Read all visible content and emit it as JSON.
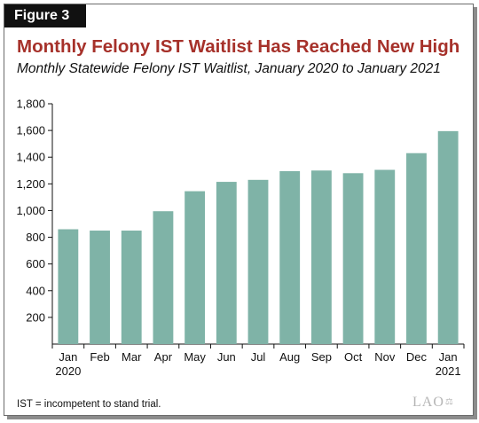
{
  "figure_label": "Figure 3",
  "title": "Monthly Felony IST Waitlist Has Reached New High",
  "subtitle": "Monthly Statewide Felony IST Waitlist, January 2020 to January 2021",
  "footnote": "IST = incompetent to stand trial.",
  "logo_text": "LAO",
  "colors": {
    "bar": "#7fb3a7",
    "title": "#a6312a",
    "axis": "#111111"
  },
  "chart_data": {
    "type": "bar",
    "categories": [
      "Jan 2020",
      "Feb",
      "Mar",
      "Apr",
      "May",
      "Jun",
      "Jul",
      "Aug",
      "Sep",
      "Oct",
      "Nov",
      "Dec",
      "Jan 2021"
    ],
    "values": [
      860,
      850,
      850,
      995,
      1145,
      1215,
      1230,
      1295,
      1300,
      1280,
      1305,
      1430,
      1595
    ],
    "ylim": [
      0,
      1800
    ],
    "yticks": [
      "200",
      "400",
      "600",
      "800",
      "1,000",
      "1,200",
      "1,400",
      "1,600",
      "1,800"
    ],
    "ytick_values": [
      200,
      400,
      600,
      800,
      1000,
      1200,
      1400,
      1600,
      1800
    ],
    "grid": false
  }
}
